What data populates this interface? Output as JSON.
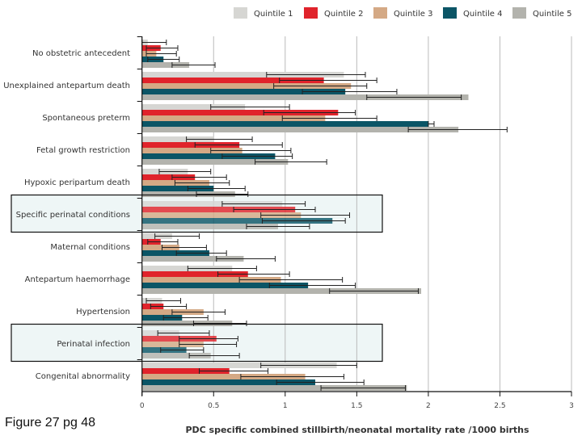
{
  "caption": "Figure 27 pg 48",
  "chart_data": {
    "type": "bar",
    "orientation": "horizontal",
    "title": "",
    "xlabel": "PDC specific combined stillbirth/neonatal mortality rate /1000 births",
    "ylabel": "",
    "xlim": [
      0,
      3
    ],
    "xticks": [
      0,
      0.5,
      1,
      1.5,
      2,
      2.5,
      3
    ],
    "xtick_labels": [
      "0",
      "0.5",
      "1",
      "1.5",
      "2",
      "2.5",
      "3"
    ],
    "grid": "vertical",
    "legend_position": "top-right",
    "categories": [
      "No obstetric antecedent",
      "Unexplained antepartum death",
      "Spontaneous preterm",
      "Fetal growth restriction",
      "Hypoxic peripartum death",
      "Specific perinatal conditions",
      "Maternal conditions",
      "Antepartum haemorrhage",
      "Hypertension",
      "Perinatal infection",
      "Congenital abnormality"
    ],
    "highlighted_categories": [
      "Specific perinatal conditions",
      "Perinatal infection"
    ],
    "series": [
      {
        "name": "Quintile 1",
        "color": "#d6d6d3",
        "values": [
          0.04,
          1.41,
          0.72,
          0.5,
          0.32,
          0.98,
          0.21,
          0.63,
          0.14,
          0.26,
          1.36
        ],
        "ci_low": [
          0.0,
          0.87,
          0.48,
          0.31,
          0.12,
          0.56,
          0.09,
          0.32,
          0.03,
          0.11,
          0.83
        ],
        "ci_high": [
          0.17,
          1.56,
          1.03,
          0.77,
          0.48,
          1.14,
          0.4,
          0.8,
          0.27,
          0.47,
          1.5
        ]
      },
      {
        "name": "Quintile 2",
        "color": "#e0232b",
        "values": [
          0.13,
          1.27,
          1.37,
          0.68,
          0.37,
          1.07,
          0.13,
          0.74,
          0.15,
          0.52,
          0.61
        ],
        "ci_low": [
          0.03,
          0.96,
          0.85,
          0.37,
          0.21,
          0.64,
          0.04,
          0.53,
          0.06,
          0.26,
          0.4
        ],
        "ci_high": [
          0.25,
          1.64,
          1.49,
          0.98,
          0.59,
          1.21,
          0.25,
          1.03,
          0.31,
          0.67,
          0.88
        ]
      },
      {
        "name": "Quintile 3",
        "color": "#d4a985",
        "values": [
          0.1,
          1.46,
          1.28,
          0.7,
          0.47,
          1.11,
          0.26,
          0.97,
          0.43,
          0.43,
          1.14
        ],
        "ci_low": [
          0.03,
          0.92,
          0.98,
          0.48,
          0.23,
          0.83,
          0.14,
          0.68,
          0.21,
          0.26,
          0.69
        ],
        "ci_high": [
          0.24,
          1.57,
          1.64,
          1.04,
          0.61,
          1.45,
          0.45,
          1.4,
          0.58,
          0.66,
          1.41
        ]
      },
      {
        "name": "Quintile 4",
        "color": "#0b5566",
        "values": [
          0.15,
          1.42,
          2.0,
          0.93,
          0.5,
          1.33,
          0.47,
          1.16,
          0.28,
          0.31,
          1.21
        ],
        "ci_low": [
          0.04,
          1.12,
          2.0,
          0.56,
          0.32,
          0.84,
          0.24,
          0.89,
          0.15,
          0.13,
          0.94
        ],
        "ci_high": [
          0.26,
          1.78,
          2.04,
          1.05,
          0.72,
          1.42,
          0.59,
          1.49,
          0.46,
          0.43,
          1.55
        ]
      },
      {
        "name": "Quintile 5",
        "color": "#b3b3ad",
        "values": [
          0.33,
          2.28,
          2.21,
          1.02,
          0.65,
          0.95,
          0.71,
          1.95,
          0.63,
          0.48,
          1.85
        ],
        "ci_low": [
          0.21,
          1.57,
          1.86,
          0.79,
          0.38,
          0.73,
          0.52,
          1.31,
          0.36,
          0.33,
          1.25
        ],
        "ci_high": [
          0.51,
          2.23,
          2.55,
          1.29,
          0.74,
          1.17,
          0.93,
          1.93,
          0.73,
          0.68,
          1.84
        ]
      }
    ]
  }
}
